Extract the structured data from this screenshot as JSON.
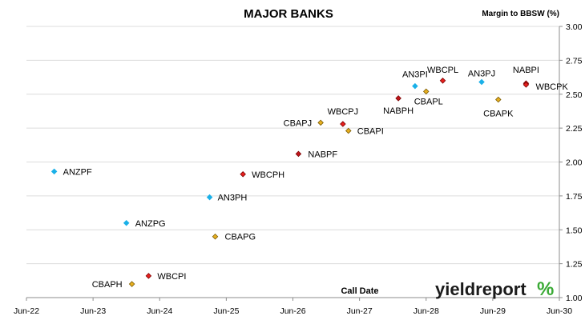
{
  "chart_data": {
    "type": "scatter",
    "title": "MAJOR BANKS",
    "xlabel": "Call Date",
    "ylabel": "Margin to BBSW (%)",
    "x_ticks": [
      "Jun-22",
      "Jun-23",
      "Jun-24",
      "Jun-25",
      "Jun-26",
      "Jun-27",
      "Jun-28",
      "Jun-29",
      "Jun-30"
    ],
    "y_ticks": [
      "1.00",
      "1.25",
      "1.50",
      "1.75",
      "2.00",
      "2.25",
      "2.50",
      "2.75",
      "3.00"
    ],
    "ylim": [
      1.0,
      3.0
    ],
    "y_axis_side": "right",
    "grid": "horizontal",
    "legend": "none",
    "colors": {
      "ANZ": "#1ab0e8",
      "WBC": "#e8201e",
      "NAB": "#c0151b",
      "CBA": "#e8b020"
    },
    "points": [
      {
        "label": "ANZPF",
        "x": "Nov-22",
        "y": 1.93,
        "color": "ANZ"
      },
      {
        "label": "ANZPG",
        "x": "Dec-23",
        "y": 1.55,
        "color": "ANZ"
      },
      {
        "label": "CBAPH",
        "x": "Jan-24",
        "y": 1.1,
        "color": "CBA"
      },
      {
        "label": "WBCPI",
        "x": "Apr-24",
        "y": 1.16,
        "color": "WBC"
      },
      {
        "label": "AN3PH",
        "x": "Mar-25",
        "y": 1.74,
        "color": "ANZ"
      },
      {
        "label": "CBAPG",
        "x": "Apr-25",
        "y": 1.45,
        "color": "CBA"
      },
      {
        "label": "WBCPH",
        "x": "Sep-25",
        "y": 1.91,
        "color": "WBC"
      },
      {
        "label": "NABPF",
        "x": "Jul-26",
        "y": 2.06,
        "color": "NAB"
      },
      {
        "label": "CBAPJ",
        "x": "Nov-26",
        "y": 2.29,
        "color": "CBA"
      },
      {
        "label": "WBCPJ",
        "x": "Mar-27",
        "y": 2.28,
        "color": "WBC"
      },
      {
        "label": "CBAPI",
        "x": "Apr-27",
        "y": 2.23,
        "color": "CBA"
      },
      {
        "label": "NABPH",
        "x": "Jan-28",
        "y": 2.47,
        "color": "NAB"
      },
      {
        "label": "AN3PI",
        "x": "Apr-28",
        "y": 2.56,
        "color": "ANZ"
      },
      {
        "label": "CBAPL",
        "x": "Jun-28",
        "y": 2.52,
        "color": "CBA"
      },
      {
        "label": "WBCPL",
        "x": "Sep-28",
        "y": 2.6,
        "color": "WBC"
      },
      {
        "label": "AN3PJ",
        "x": "Apr-29",
        "y": 2.59,
        "color": "ANZ"
      },
      {
        "label": "CBAPK",
        "x": "Jul-29",
        "y": 2.46,
        "color": "CBA"
      },
      {
        "label": "NABPI",
        "x": "Dec-29",
        "y": 2.58,
        "color": "NAB"
      },
      {
        "label": "WBCPK",
        "x": "Dec-29",
        "y": 2.57,
        "color": "WBC"
      }
    ]
  },
  "branding": {
    "name": "yieldreport",
    "symbol": "%"
  }
}
